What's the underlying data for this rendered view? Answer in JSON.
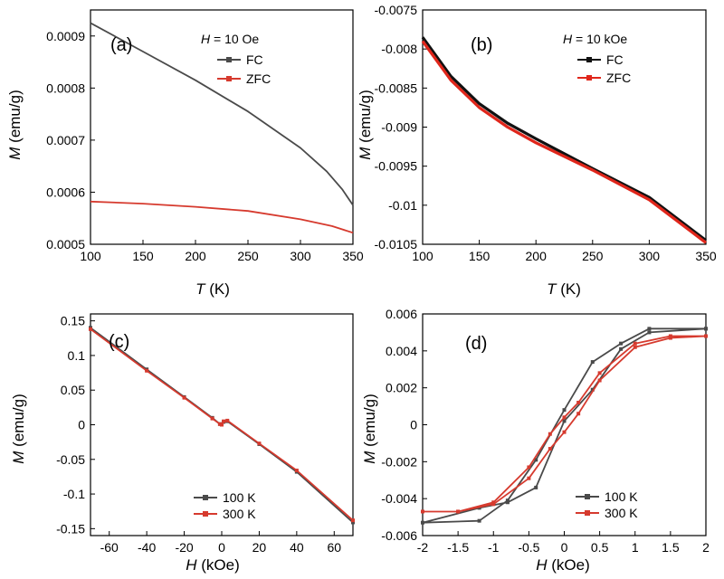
{
  "colors": {
    "fc": "#4a4a4a",
    "zfc": "#d63a2e",
    "k100": "#4a4a4a",
    "k300": "#d63a2e",
    "black": "#111111",
    "red": "#e0261b"
  },
  "chart_data": [
    {
      "panel": "(a)",
      "type": "line",
      "condition_var": "H",
      "condition_value": " = 10 Oe",
      "xlabel_var": "T",
      "xlabel_unit": " (K)",
      "ylabel_var": "M",
      "ylabel_unit": " (emu/g)",
      "xlim": [
        100,
        350
      ],
      "ylim": [
        0.0005,
        0.00095
      ],
      "xticks": [
        100,
        150,
        200,
        250,
        300,
        350
      ],
      "xtick_labels": [
        "100",
        "150",
        "200",
        "250",
        "300",
        "350"
      ],
      "yticks": [
        0.0005,
        0.0006,
        0.0007,
        0.0008,
        0.0009
      ],
      "ytick_labels": [
        "0.0005",
        "0.0006",
        "0.0007",
        "0.0008",
        "0.0009"
      ],
      "legend_position": "top-right",
      "series": [
        {
          "name": "FC",
          "color_key": "fc",
          "x": [
            100,
            150,
            200,
            250,
            300,
            325,
            340,
            350
          ],
          "y": [
            0.000925,
            0.00087,
            0.000815,
            0.000755,
            0.000685,
            0.00064,
            0.000605,
            0.000575
          ]
        },
        {
          "name": "ZFC",
          "color_key": "zfc",
          "x": [
            100,
            150,
            200,
            250,
            300,
            330,
            350
          ],
          "y": [
            0.000582,
            0.000578,
            0.000572,
            0.000564,
            0.000548,
            0.000535,
            0.000522
          ]
        }
      ]
    },
    {
      "panel": "(b)",
      "type": "line",
      "condition_var": "H",
      "condition_value": " = 10 kOe",
      "xlabel_var": "T",
      "xlabel_unit": " (K)",
      "ylabel_var": "M",
      "ylabel_unit": " (emu/g)",
      "xlim": [
        100,
        350
      ],
      "ylim": [
        -0.0105,
        -0.0075
      ],
      "xticks": [
        100,
        150,
        200,
        250,
        300,
        350
      ],
      "xtick_labels": [
        "100",
        "150",
        "200",
        "250",
        "300",
        "350"
      ],
      "yticks": [
        -0.0105,
        -0.01,
        -0.0095,
        -0.009,
        -0.0085,
        -0.008,
        -0.0075
      ],
      "ytick_labels": [
        "-0.0105",
        "-0.01",
        "-0.0095",
        "-0.009",
        "-0.0085",
        "-0.008",
        "-0.0075"
      ],
      "legend_position": "top-right",
      "series": [
        {
          "name": "FC",
          "color_key": "black",
          "x": [
            100,
            125,
            150,
            175,
            200,
            250,
            300,
            350
          ],
          "y": [
            -0.00785,
            -0.00835,
            -0.0087,
            -0.00895,
            -0.00915,
            -0.00953,
            -0.0099,
            -0.01045
          ]
        },
        {
          "name": "ZFC",
          "color_key": "red",
          "x": [
            100,
            125,
            150,
            175,
            200,
            250,
            300,
            350
          ],
          "y": [
            -0.0079,
            -0.0084,
            -0.00875,
            -0.009,
            -0.0092,
            -0.00955,
            -0.00993,
            -0.01048
          ]
        }
      ]
    },
    {
      "panel": "(c)",
      "type": "line",
      "xlabel_var": "H",
      "xlabel_unit": " (kOe)",
      "ylabel_var": "M",
      "ylabel_unit": " (emu/g)",
      "xlim": [
        -70,
        70
      ],
      "ylim": [
        -0.16,
        0.16
      ],
      "xticks": [
        -60,
        -40,
        -20,
        0,
        20,
        40,
        60
      ],
      "xtick_labels": [
        "-60",
        "-40",
        "-20",
        "0",
        "20",
        "40",
        "60"
      ],
      "yticks": [
        -0.15,
        -0.1,
        -0.05,
        0,
        0.05,
        0.1,
        0.15
      ],
      "ytick_labels": [
        "-0.15",
        "-0.1",
        "-0.05",
        "0",
        "0.05",
        "0.1",
        "0.15"
      ],
      "legend_position": "bottom-center",
      "series": [
        {
          "name": "100 K",
          "color_key": "k100",
          "x": [
            -70,
            -40,
            -20,
            -5,
            -1,
            0,
            1,
            3,
            20,
            40,
            70
          ],
          "y": [
            0.14,
            0.08,
            0.04,
            0.01,
            0.001,
            0.0,
            0.004,
            0.005,
            -0.028,
            -0.068,
            -0.141
          ]
        },
        {
          "name": "300 K",
          "color_key": "k300",
          "x": [
            -70,
            -40,
            -20,
            -5,
            -1,
            0,
            1,
            3,
            20,
            40,
            70
          ],
          "y": [
            0.138,
            0.078,
            0.039,
            0.009,
            0.001,
            0.0,
            0.005,
            0.006,
            -0.027,
            -0.066,
            -0.138
          ]
        }
      ]
    },
    {
      "panel": "(d)",
      "type": "line",
      "xlabel_var": "H",
      "xlabel_unit": " (kOe)",
      "ylabel_var": "M",
      "ylabel_unit": " (emu/g)",
      "xlim": [
        -2,
        2
      ],
      "ylim": [
        -0.006,
        0.006
      ],
      "xticks": [
        -2,
        -1.5,
        -1,
        -0.5,
        0,
        0.5,
        1,
        1.5,
        2
      ],
      "xtick_labels": [
        "-2",
        "-1.5",
        "-1",
        "-0.5",
        "0",
        "0.5",
        "1",
        "1.5",
        "2"
      ],
      "yticks": [
        -0.006,
        -0.004,
        -0.002,
        0,
        0.002,
        0.004,
        0.006
      ],
      "ytick_labels": [
        "-0.006",
        "-0.004",
        "-0.002",
        "0",
        "0.002",
        "0.004",
        "0.006"
      ],
      "legend_position": "bottom-right",
      "series": [
        {
          "name": "100 K",
          "color_key": "k100",
          "x": [
            2,
            1.2,
            0.8,
            0.4,
            0.0,
            -0.4,
            -0.8,
            -1.2,
            -2,
            -1.2,
            -0.8,
            -0.4,
            0.0,
            0.4,
            0.8,
            1.2,
            2
          ],
          "y": [
            0.0052,
            0.0052,
            0.0044,
            0.0034,
            0.0008,
            -0.0019,
            -0.0041,
            -0.0052,
            -0.0053,
            -0.0045,
            -0.0042,
            -0.0034,
            0.0002,
            0.0019,
            0.0041,
            0.005,
            0.0052
          ]
        },
        {
          "name": "300 K",
          "color_key": "k300",
          "x": [
            2,
            1.5,
            1.0,
            0.5,
            0.2,
            0.0,
            -0.2,
            -0.5,
            -1.0,
            -1.5,
            -2,
            -1.5,
            -1.0,
            -0.5,
            -0.2,
            0.0,
            0.2,
            0.5,
            1.0,
            1.5,
            2
          ],
          "y": [
            0.0048,
            0.0048,
            0.0044,
            0.0028,
            0.0012,
            0.0004,
            -0.0005,
            -0.0023,
            -0.0042,
            -0.0047,
            -0.0047,
            -0.0047,
            -0.0043,
            -0.0029,
            -0.0013,
            -0.0004,
            0.0006,
            0.0024,
            0.0042,
            0.0047,
            0.0048
          ]
        }
      ]
    }
  ]
}
